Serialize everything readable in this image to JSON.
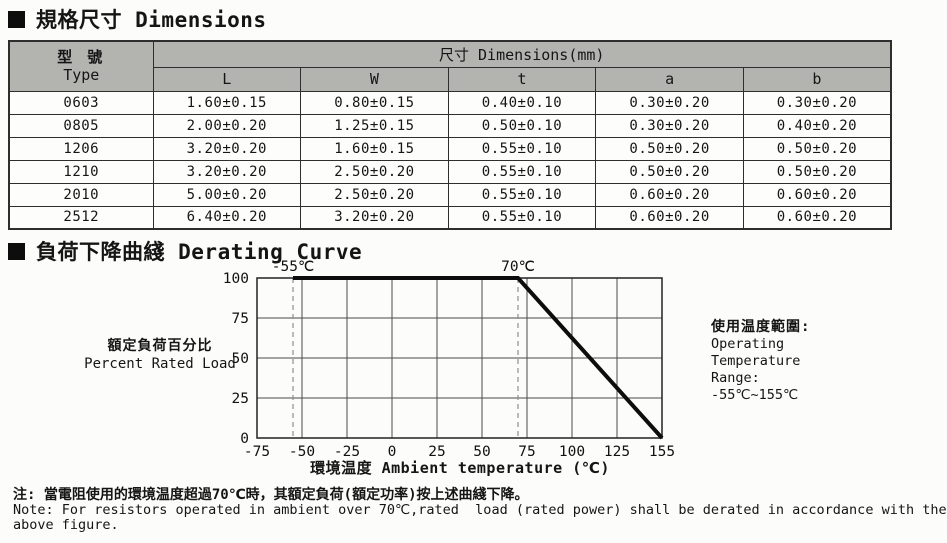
{
  "page": {
    "section1_title": "規格尺寸 Dimensions",
    "section2_title": "負荷下降曲綫 Derating Curve"
  },
  "table": {
    "type_header_zh": "型 號",
    "type_header_en": "Type",
    "dims_header": "尺寸 Dimensions(mm)",
    "columns": [
      "L",
      "W",
      "t",
      "a",
      "b"
    ],
    "rows": [
      {
        "type": "0603",
        "values": [
          "1.60±0.15",
          "0.80±0.15",
          "0.40±0.10",
          "0.30±0.20",
          "0.30±0.20"
        ]
      },
      {
        "type": "0805",
        "values": [
          "2.00±0.20",
          "1.25±0.15",
          "0.50±0.10",
          "0.30±0.20",
          "0.40±0.20"
        ]
      },
      {
        "type": "1206",
        "values": [
          "3.20±0.20",
          "1.60±0.15",
          "0.55±0.10",
          "0.50±0.20",
          "0.50±0.20"
        ]
      },
      {
        "type": "1210",
        "values": [
          "3.20±0.20",
          "2.50±0.20",
          "0.55±0.10",
          "0.50±0.20",
          "0.50±0.20"
        ]
      },
      {
        "type": "2010",
        "values": [
          "5.00±0.20",
          "2.50±0.20",
          "0.55±0.10",
          "0.60±0.20",
          "0.60±0.20"
        ]
      },
      {
        "type": "2512",
        "values": [
          "6.40±0.20",
          "3.20±0.20",
          "0.55±0.10",
          "0.60±0.20",
          "0.60±0.20"
        ]
      }
    ]
  },
  "chart_data": {
    "type": "line",
    "title": "負荷下降曲綫 Derating Curve",
    "xlabel": "環境温度 Ambient temperature (℃)",
    "ylabel_zh": "額定負荷百分比",
    "ylabel_en": "Percent Rated Load",
    "x_ticks": [
      -75,
      -50,
      -25,
      0,
      25,
      50,
      75,
      100,
      125,
      155
    ],
    "y_ticks": [
      0,
      25,
      50,
      75,
      100
    ],
    "xlim": [
      -75,
      155
    ],
    "ylim": [
      0,
      100
    ],
    "grid": true,
    "legend": "none",
    "series": [
      {
        "name": "derating-curve",
        "points": [
          [
            -55,
            100
          ],
          [
            70,
            100
          ],
          [
            155,
            0
          ]
        ]
      }
    ],
    "annotations": [
      {
        "label": "-55℃",
        "x": -55,
        "style": "dashed-vline"
      },
      {
        "label": "70℃",
        "x": 70,
        "style": "dashed-vline"
      }
    ],
    "colors": {
      "line": "#0d0d0d",
      "grid": "#4a4a4a",
      "border": "#222222",
      "dashed": "#8f8f8f"
    }
  },
  "side_note": {
    "lines": [
      "使用温度範圍:",
      "Operating",
      "Temperature",
      "Range:",
      "-55℃~155℃"
    ]
  },
  "footnote": {
    "line1": "注: 當電阻使用的環境温度超過70℃時，其額定負荷(額定功率)按上述曲綫下降。",
    "line2": "Note: For resistors operated in ambient over 70℃,rated  load (rated power) shall be derated in accordance with the",
    "line3": "above figure."
  },
  "colors": {
    "header_bg": "#b3b3b0",
    "page_bg": "#fcfcfa",
    "border": "#2e2e2e",
    "text": "#151515"
  }
}
